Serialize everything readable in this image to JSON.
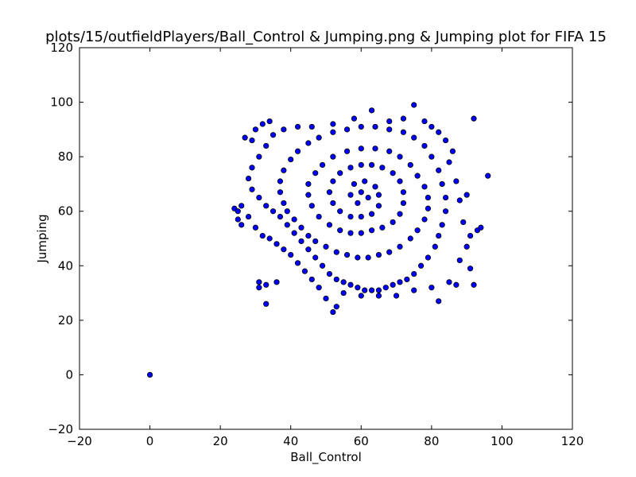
{
  "chart_data": {
    "type": "scatter",
    "title": "plots/15/outfieldPlayers/Ball_Control & Jumping.png & Jumping plot for FIFA 15",
    "xlabel": "Ball_Control",
    "ylabel": "Jumping",
    "xlim": [
      -20,
      120
    ],
    "ylim": [
      -20,
      120
    ],
    "xticks": [
      "−20",
      "0",
      "20",
      "40",
      "60",
      "80",
      "100",
      "120"
    ],
    "yticks": [
      "−20",
      "0",
      "20",
      "40",
      "60",
      "80",
      "100",
      "120"
    ],
    "grid": false,
    "legend": "none",
    "marker_color": "#0000ff",
    "marker_edge": "#000000",
    "series": [
      {
        "points": [
          [
            0,
            0
          ],
          [
            63,
            97
          ],
          [
            75,
            99
          ],
          [
            92,
            94
          ],
          [
            96,
            73
          ],
          [
            94,
            54
          ],
          [
            93,
            53
          ],
          [
            91,
            51
          ],
          [
            92,
            33
          ],
          [
            91,
            39
          ],
          [
            82,
            27
          ],
          [
            52,
            23
          ],
          [
            53,
            25
          ],
          [
            50,
            28
          ],
          [
            33,
            26
          ],
          [
            24,
            61
          ],
          [
            25,
            60
          ],
          [
            25,
            57
          ],
          [
            26,
            62
          ],
          [
            30,
            90
          ],
          [
            32,
            92
          ],
          [
            34,
            93
          ],
          [
            27,
            87
          ],
          [
            29,
            86
          ],
          [
            31,
            34
          ],
          [
            31,
            32
          ],
          [
            33,
            33
          ],
          [
            36,
            34
          ],
          [
            26,
            55
          ],
          [
            28,
            58
          ],
          [
            30,
            54
          ],
          [
            32,
            51
          ],
          [
            34,
            50
          ],
          [
            36,
            48
          ],
          [
            38,
            46
          ],
          [
            40,
            44
          ],
          [
            42,
            41
          ],
          [
            44,
            38
          ],
          [
            46,
            35
          ],
          [
            48,
            32
          ],
          [
            55,
            30
          ],
          [
            60,
            29
          ],
          [
            65,
            29
          ],
          [
            70,
            29
          ],
          [
            75,
            31
          ],
          [
            80,
            32
          ],
          [
            85,
            34
          ],
          [
            87,
            33
          ],
          [
            88,
            42
          ],
          [
            90,
            47
          ],
          [
            89,
            56
          ],
          [
            88,
            64
          ],
          [
            90,
            66
          ],
          [
            87,
            71
          ],
          [
            85,
            78
          ],
          [
            86,
            82
          ],
          [
            84,
            86
          ],
          [
            82,
            89
          ],
          [
            80,
            91
          ],
          [
            78,
            93
          ],
          [
            72,
            94
          ],
          [
            68,
            93
          ],
          [
            58,
            94
          ],
          [
            52,
            92
          ],
          [
            46,
            91
          ],
          [
            42,
            91
          ],
          [
            38,
            90
          ],
          [
            35,
            88
          ],
          [
            33,
            84
          ],
          [
            31,
            80
          ],
          [
            29,
            76
          ],
          [
            28,
            72
          ],
          [
            29,
            68
          ],
          [
            31,
            65
          ],
          [
            33,
            62
          ],
          [
            35,
            60
          ],
          [
            37,
            58
          ],
          [
            39,
            55
          ],
          [
            41,
            52
          ],
          [
            43,
            49
          ],
          [
            45,
            46
          ],
          [
            47,
            43
          ],
          [
            49,
            40
          ],
          [
            51,
            37
          ],
          [
            53,
            35
          ],
          [
            55,
            34
          ],
          [
            57,
            33
          ],
          [
            59,
            32
          ],
          [
            61,
            31
          ],
          [
            63,
            31
          ],
          [
            65,
            31
          ],
          [
            67,
            32
          ],
          [
            69,
            33
          ],
          [
            71,
            34
          ],
          [
            73,
            35
          ],
          [
            75,
            37
          ],
          [
            77,
            40
          ],
          [
            79,
            43
          ],
          [
            81,
            47
          ],
          [
            82,
            51
          ],
          [
            83,
            55
          ],
          [
            84,
            60
          ],
          [
            84,
            65
          ],
          [
            83,
            70
          ],
          [
            82,
            75
          ],
          [
            80,
            80
          ],
          [
            78,
            84
          ],
          [
            75,
            87
          ],
          [
            72,
            89
          ],
          [
            68,
            90
          ],
          [
            64,
            91
          ],
          [
            60,
            91
          ],
          [
            56,
            90
          ],
          [
            52,
            89
          ],
          [
            48,
            87
          ],
          [
            45,
            85
          ],
          [
            42,
            82
          ],
          [
            40,
            79
          ],
          [
            38,
            75
          ],
          [
            37,
            71
          ],
          [
            37,
            67
          ],
          [
            38,
            63
          ],
          [
            39,
            60
          ],
          [
            41,
            57
          ],
          [
            43,
            54
          ],
          [
            45,
            51
          ],
          [
            47,
            49
          ],
          [
            50,
            47
          ],
          [
            53,
            45
          ],
          [
            56,
            44
          ],
          [
            59,
            43
          ],
          [
            62,
            43
          ],
          [
            65,
            44
          ],
          [
            68,
            45
          ],
          [
            71,
            47
          ],
          [
            74,
            50
          ],
          [
            76,
            53
          ],
          [
            78,
            57
          ],
          [
            79,
            61
          ],
          [
            79,
            65
          ],
          [
            78,
            69
          ],
          [
            76,
            73
          ],
          [
            74,
            77
          ],
          [
            71,
            80
          ],
          [
            68,
            82
          ],
          [
            64,
            83
          ],
          [
            60,
            83
          ],
          [
            56,
            82
          ],
          [
            52,
            80
          ],
          [
            49,
            77
          ],
          [
            47,
            74
          ],
          [
            45,
            70
          ],
          [
            45,
            66
          ],
          [
            46,
            62
          ],
          [
            48,
            58
          ],
          [
            51,
            55
          ],
          [
            54,
            53
          ],
          [
            57,
            52
          ],
          [
            60,
            52
          ],
          [
            63,
            53
          ],
          [
            66,
            54
          ],
          [
            69,
            56
          ],
          [
            71,
            59
          ],
          [
            72,
            63
          ],
          [
            72,
            67
          ],
          [
            71,
            71
          ],
          [
            69,
            74
          ],
          [
            66,
            76
          ],
          [
            63,
            77
          ],
          [
            60,
            77
          ],
          [
            57,
            76
          ],
          [
            54,
            74
          ],
          [
            52,
            71
          ],
          [
            51,
            67
          ],
          [
            52,
            63
          ],
          [
            54,
            60
          ],
          [
            57,
            58
          ],
          [
            60,
            58
          ],
          [
            63,
            59
          ],
          [
            65,
            62
          ],
          [
            65,
            66
          ],
          [
            64,
            69
          ],
          [
            61,
            71
          ],
          [
            58,
            70
          ],
          [
            57,
            66
          ],
          [
            59,
            63
          ],
          [
            62,
            65
          ],
          [
            60,
            67
          ]
        ]
      }
    ]
  }
}
